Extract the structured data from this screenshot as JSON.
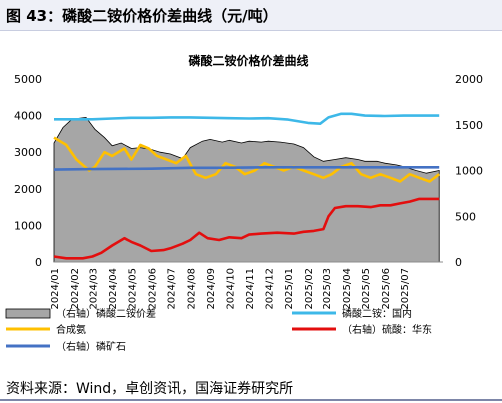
{
  "figure_title": "图 43：磷酸二铵价格价差曲线（元/吨）",
  "source": "资料来源：Wind，卓创资讯，国海证券研究所",
  "chart_data": {
    "type": "area",
    "title": "磷酸二铵价格价差曲线",
    "left_axis": {
      "min": 0,
      "max": 5000,
      "ticks": [
        "0",
        "1000",
        "2000",
        "3000",
        "4000",
        "5000"
      ]
    },
    "right_axis": {
      "min": 0,
      "max": 2000,
      "ticks": [
        "0",
        "500",
        "1000",
        "1500",
        "2000"
      ]
    },
    "x_start": "2024-01-01",
    "x_end": "2025-08-31",
    "x_tick_labels": [
      "2024/01",
      "2024/02",
      "2024/03",
      "2024/04",
      "2024/05",
      "2024/06",
      "2024/07",
      "2024/08",
      "2024/09",
      "2024/10",
      "2024/11",
      "2024/12",
      "2025/01",
      "2025/02",
      "2025/03",
      "2025/04",
      "2025/05",
      "2025/06",
      "2025/07"
    ],
    "x_ticks": [
      "2024-01-01",
      "2024-02-01",
      "2024-03-01",
      "2024-04-01",
      "2024-05-01",
      "2024-06-01",
      "2024-07-01",
      "2024-08-01",
      "2024-09-01",
      "2024-10-01",
      "2024-11-01",
      "2024-12-01",
      "2025-01-01",
      "2025-02-01",
      "2025-03-01",
      "2025-04-01",
      "2025-05-01",
      "2025-06-01",
      "2025-07-01"
    ],
    "series": [
      {
        "name": "（右轴）磷酸二铵价差",
        "kind": "area",
        "axis": "right",
        "color": "#a6a6a6",
        "points": [
          [
            "2024-01-01",
            1300
          ],
          [
            "2024-01-15",
            1470
          ],
          [
            "2024-01-29",
            1560
          ],
          [
            "2024-02-20",
            1580
          ],
          [
            "2024-03-05",
            1450
          ],
          [
            "2024-03-20",
            1360
          ],
          [
            "2024-04-01",
            1270
          ],
          [
            "2024-04-15",
            1300
          ],
          [
            "2024-05-01",
            1240
          ],
          [
            "2024-05-15",
            1250
          ],
          [
            "2024-06-01",
            1230
          ],
          [
            "2024-06-15",
            1200
          ],
          [
            "2024-07-01",
            1180
          ],
          [
            "2024-07-20",
            1130
          ],
          [
            "2024-08-01",
            1250
          ],
          [
            "2024-08-20",
            1320
          ],
          [
            "2024-09-01",
            1340
          ],
          [
            "2024-09-20",
            1310
          ],
          [
            "2024-10-01",
            1330
          ],
          [
            "2024-10-20",
            1300
          ],
          [
            "2024-11-01",
            1320
          ],
          [
            "2024-11-20",
            1310
          ],
          [
            "2024-12-01",
            1320
          ],
          [
            "2024-12-20",
            1310
          ],
          [
            "2025-01-10",
            1290
          ],
          [
            "2025-01-25",
            1250
          ],
          [
            "2025-02-10",
            1150
          ],
          [
            "2025-02-25",
            1100
          ],
          [
            "2025-03-15",
            1120
          ],
          [
            "2025-04-01",
            1140
          ],
          [
            "2025-04-20",
            1120
          ],
          [
            "2025-05-01",
            1100
          ],
          [
            "2025-05-20",
            1100
          ],
          [
            "2025-06-01",
            1080
          ],
          [
            "2025-06-20",
            1060
          ],
          [
            "2025-07-01",
            1040
          ],
          [
            "2025-07-20",
            1000
          ],
          [
            "2025-08-05",
            970
          ],
          [
            "2025-08-25",
            1000
          ]
        ]
      },
      {
        "name": "磷酸二铵：国内",
        "kind": "line",
        "axis": "left",
        "color": "#3db8e8",
        "points": [
          [
            "2024-01-01",
            3900
          ],
          [
            "2024-02-01",
            3900
          ],
          [
            "2024-03-01",
            3900
          ],
          [
            "2024-04-01",
            3920
          ],
          [
            "2024-05-01",
            3940
          ],
          [
            "2024-06-01",
            3940
          ],
          [
            "2024-07-01",
            3950
          ],
          [
            "2024-08-01",
            3950
          ],
          [
            "2024-09-01",
            3940
          ],
          [
            "2024-10-01",
            3930
          ],
          [
            "2024-11-01",
            3920
          ],
          [
            "2024-12-01",
            3930
          ],
          [
            "2025-01-01",
            3890
          ],
          [
            "2025-02-01",
            3800
          ],
          [
            "2025-02-20",
            3780
          ],
          [
            "2025-03-05",
            3950
          ],
          [
            "2025-03-25",
            4050
          ],
          [
            "2025-04-10",
            4050
          ],
          [
            "2025-05-01",
            4000
          ],
          [
            "2025-06-01",
            3990
          ],
          [
            "2025-07-01",
            4000
          ],
          [
            "2025-08-25",
            4000
          ]
        ]
      },
      {
        "name": "合成氨",
        "kind": "line",
        "axis": "left",
        "color": "#ffc000",
        "points": [
          [
            "2024-01-01",
            3400
          ],
          [
            "2024-01-20",
            3200
          ],
          [
            "2024-02-05",
            2800
          ],
          [
            "2024-02-25",
            2500
          ],
          [
            "2024-03-05",
            2600
          ],
          [
            "2024-03-20",
            3000
          ],
          [
            "2024-04-01",
            2900
          ],
          [
            "2024-04-20",
            3100
          ],
          [
            "2024-05-01",
            2800
          ],
          [
            "2024-05-15",
            3200
          ],
          [
            "2024-05-28",
            3100
          ],
          [
            "2024-06-10",
            2900
          ],
          [
            "2024-06-25",
            2800
          ],
          [
            "2024-07-10",
            2700
          ],
          [
            "2024-07-25",
            2900
          ],
          [
            "2024-08-10",
            2400
          ],
          [
            "2024-08-25",
            2300
          ],
          [
            "2024-09-10",
            2400
          ],
          [
            "2024-09-25",
            2700
          ],
          [
            "2024-10-10",
            2600
          ],
          [
            "2024-10-25",
            2400
          ],
          [
            "2024-11-10",
            2500
          ],
          [
            "2024-11-25",
            2700
          ],
          [
            "2024-12-10",
            2600
          ],
          [
            "2024-12-25",
            2500
          ],
          [
            "2025-01-10",
            2600
          ],
          [
            "2025-01-25",
            2500
          ],
          [
            "2025-02-10",
            2400
          ],
          [
            "2025-02-25",
            2300
          ],
          [
            "2025-03-10",
            2400
          ],
          [
            "2025-03-25",
            2600
          ],
          [
            "2025-04-10",
            2700
          ],
          [
            "2025-04-25",
            2400
          ],
          [
            "2025-05-10",
            2300
          ],
          [
            "2025-05-25",
            2400
          ],
          [
            "2025-06-10",
            2300
          ],
          [
            "2025-06-25",
            2200
          ],
          [
            "2025-07-10",
            2400
          ],
          [
            "2025-07-25",
            2300
          ],
          [
            "2025-08-10",
            2200
          ],
          [
            "2025-08-25",
            2400
          ]
        ]
      },
      {
        "name": "（右轴）硫酸：华东",
        "kind": "line",
        "axis": "right",
        "color": "#e30e0e",
        "points": [
          [
            "2024-01-01",
            60
          ],
          [
            "2024-01-20",
            40
          ],
          [
            "2024-02-15",
            40
          ],
          [
            "2024-03-01",
            60
          ],
          [
            "2024-03-15",
            100
          ],
          [
            "2024-04-01",
            180
          ],
          [
            "2024-04-20",
            260
          ],
          [
            "2024-05-01",
            220
          ],
          [
            "2024-05-15",
            180
          ],
          [
            "2024-06-01",
            120
          ],
          [
            "2024-06-20",
            130
          ],
          [
            "2024-07-01",
            150
          ],
          [
            "2024-07-20",
            200
          ],
          [
            "2024-08-01",
            240
          ],
          [
            "2024-08-15",
            320
          ],
          [
            "2024-08-28",
            260
          ],
          [
            "2024-09-15",
            240
          ],
          [
            "2024-10-01",
            270
          ],
          [
            "2024-10-20",
            260
          ],
          [
            "2024-11-01",
            300
          ],
          [
            "2024-11-20",
            310
          ],
          [
            "2024-12-15",
            320
          ],
          [
            "2025-01-10",
            310
          ],
          [
            "2025-01-25",
            330
          ],
          [
            "2025-02-10",
            340
          ],
          [
            "2025-02-25",
            360
          ],
          [
            "2025-03-05",
            500
          ],
          [
            "2025-03-15",
            590
          ],
          [
            "2025-04-01",
            610
          ],
          [
            "2025-04-20",
            610
          ],
          [
            "2025-05-10",
            600
          ],
          [
            "2025-05-25",
            620
          ],
          [
            "2025-06-10",
            620
          ],
          [
            "2025-06-25",
            640
          ],
          [
            "2025-07-10",
            660
          ],
          [
            "2025-07-25",
            690
          ],
          [
            "2025-08-25",
            690
          ]
        ]
      },
      {
        "name": "（右轴）磷矿石",
        "kind": "line",
        "axis": "right",
        "color": "#4472c4",
        "points": [
          [
            "2024-01-01",
            1010
          ],
          [
            "2024-03-01",
            1015
          ],
          [
            "2024-06-01",
            1020
          ],
          [
            "2024-08-01",
            1030
          ],
          [
            "2024-09-15",
            1030
          ],
          [
            "2024-12-01",
            1035
          ],
          [
            "2025-02-01",
            1035
          ],
          [
            "2025-05-01",
            1035
          ],
          [
            "2025-07-01",
            1035
          ],
          [
            "2025-08-25",
            1035
          ]
        ]
      }
    ],
    "legend": [
      {
        "label": "（右轴）磷酸二铵价差",
        "color": "#a6a6a6",
        "kind": "box"
      },
      {
        "label": "磷酸二铵：国内",
        "color": "#3db8e8",
        "kind": "line"
      },
      {
        "label": "合成氨",
        "color": "#ffc000",
        "kind": "line"
      },
      {
        "label": "（右轴）硫酸：华东",
        "color": "#e30e0e",
        "kind": "line"
      },
      {
        "label": "（右轴）磷矿石",
        "color": "#4472c4",
        "kind": "line"
      }
    ]
  }
}
